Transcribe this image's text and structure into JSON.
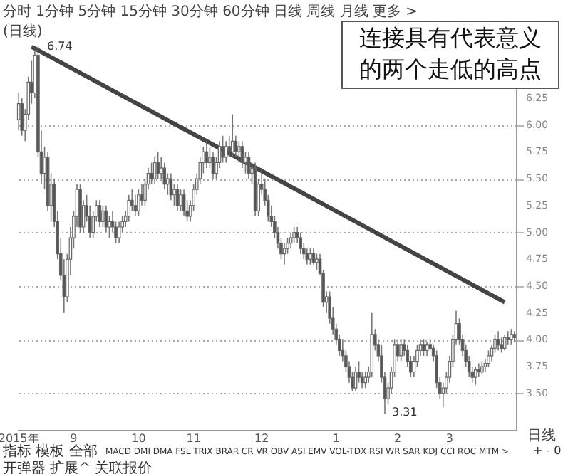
{
  "chart_data": {
    "type": "candlestick",
    "categories": [
      "2015年",
      null,
      null,
      null,
      null,
      null,
      null,
      null,
      null,
      null,
      null,
      null,
      null,
      null,
      null,
      null,
      null,
      "9",
      null,
      null,
      null,
      null,
      null,
      null,
      null,
      null,
      null,
      null,
      null,
      null,
      null,
      null,
      null,
      null,
      null,
      null,
      null,
      "10",
      null,
      null,
      null,
      null,
      null,
      null,
      null,
      null,
      null,
      null,
      null,
      null,
      null,
      null,
      null,
      null,
      "11",
      null,
      null,
      null,
      null,
      null,
      null,
      null,
      null,
      null,
      null,
      null,
      null,
      null,
      null,
      null,
      null,
      null,
      null,
      null,
      null,
      "12",
      null,
      null,
      null,
      null,
      null,
      null,
      null,
      null,
      null,
      null,
      null,
      null,
      null,
      null,
      null,
      null,
      null,
      null,
      null,
      null,
      null,
      null,
      "1",
      null,
      null,
      null,
      null,
      null,
      null,
      null,
      null,
      null,
      null,
      null,
      null,
      null,
      null,
      null,
      null,
      null,
      null,
      "2",
      null,
      null,
      null,
      null,
      null,
      null,
      null,
      null,
      null,
      null,
      null,
      null,
      null,
      null,
      null,
      "3",
      null,
      null,
      null,
      null,
      null,
      null,
      null,
      null,
      null,
      null,
      null,
      null,
      null,
      null,
      null,
      null,
      null,
      null,
      null,
      null
    ],
    "ohlc": [
      [
        6.05,
        6.3,
        5.95,
        6.2
      ],
      [
        6.2,
        6.25,
        5.9,
        5.95
      ],
      [
        5.95,
        6.15,
        5.85,
        6.1
      ],
      [
        6.1,
        6.45,
        6.05,
        6.4
      ],
      [
        6.4,
        6.6,
        6.2,
        6.3
      ],
      [
        6.3,
        6.7,
        6.25,
        6.65
      ],
      [
        6.65,
        6.74,
        5.7,
        5.75
      ],
      [
        5.75,
        5.95,
        5.45,
        5.55
      ],
      [
        5.55,
        5.8,
        5.4,
        5.7
      ],
      [
        5.7,
        5.75,
        5.2,
        5.25
      ],
      [
        5.25,
        5.55,
        5.1,
        5.45
      ],
      [
        5.45,
        5.5,
        5.05,
        5.1
      ],
      [
        5.1,
        5.2,
        4.75,
        4.8
      ],
      [
        4.8,
        4.95,
        4.55,
        4.6
      ],
      [
        4.6,
        4.75,
        4.25,
        4.4
      ],
      [
        4.4,
        4.8,
        4.35,
        4.75
      ],
      [
        4.75,
        5.05,
        4.6,
        4.95
      ],
      [
        4.95,
        5.2,
        4.85,
        5.15
      ],
      [
        5.15,
        5.45,
        5.05,
        5.4
      ],
      [
        5.4,
        5.45,
        5.0,
        5.05
      ],
      [
        5.05,
        5.3,
        5.0,
        5.25
      ],
      [
        5.25,
        5.35,
        5.1,
        5.15
      ],
      [
        5.15,
        5.25,
        4.95,
        5.0
      ],
      [
        5.0,
        5.2,
        4.95,
        5.15
      ],
      [
        5.15,
        5.3,
        5.1,
        5.25
      ],
      [
        5.25,
        5.3,
        5.05,
        5.1
      ],
      [
        5.1,
        5.25,
        5.05,
        5.2
      ],
      [
        5.2,
        5.25,
        5.0,
        5.05
      ],
      [
        5.05,
        5.15,
        4.95,
        5.1
      ],
      [
        5.1,
        5.2,
        5.0,
        5.05
      ],
      [
        5.05,
        5.1,
        4.9,
        4.95
      ],
      [
        4.95,
        5.1,
        4.9,
        5.05
      ],
      [
        5.05,
        5.15,
        5.0,
        5.1
      ],
      [
        5.1,
        5.2,
        5.05,
        5.15
      ],
      [
        5.15,
        5.35,
        5.1,
        5.3
      ],
      [
        5.3,
        5.4,
        5.2,
        5.25
      ],
      [
        5.25,
        5.35,
        5.15,
        5.2
      ],
      [
        5.2,
        5.4,
        5.15,
        5.35
      ],
      [
        5.35,
        5.45,
        5.25,
        5.3
      ],
      [
        5.3,
        5.5,
        5.25,
        5.45
      ],
      [
        5.45,
        5.6,
        5.4,
        5.55
      ],
      [
        5.55,
        5.65,
        5.45,
        5.5
      ],
      [
        5.5,
        5.7,
        5.45,
        5.65
      ],
      [
        5.65,
        5.75,
        5.5,
        5.55
      ],
      [
        5.55,
        5.7,
        5.5,
        5.6
      ],
      [
        5.6,
        5.65,
        5.4,
        5.45
      ],
      [
        5.45,
        5.55,
        5.35,
        5.5
      ],
      [
        5.5,
        5.55,
        5.3,
        5.35
      ],
      [
        5.35,
        5.45,
        5.25,
        5.4
      ],
      [
        5.4,
        5.45,
        5.2,
        5.25
      ],
      [
        5.25,
        5.4,
        5.2,
        5.35
      ],
      [
        5.35,
        5.4,
        5.15,
        5.2
      ],
      [
        5.2,
        5.3,
        5.1,
        5.15
      ],
      [
        5.15,
        5.3,
        5.1,
        5.25
      ],
      [
        5.25,
        5.45,
        5.2,
        5.4
      ],
      [
        5.4,
        5.55,
        5.35,
        5.5
      ],
      [
        5.5,
        5.7,
        5.45,
        5.65
      ],
      [
        5.65,
        5.8,
        5.55,
        5.75
      ],
      [
        5.75,
        5.85,
        5.6,
        5.65
      ],
      [
        5.65,
        5.8,
        5.6,
        5.7
      ],
      [
        5.7,
        5.75,
        5.5,
        5.55
      ],
      [
        5.55,
        5.7,
        5.5,
        5.65
      ],
      [
        5.65,
        5.85,
        5.6,
        5.8
      ],
      [
        5.8,
        5.9,
        5.65,
        5.7
      ],
      [
        5.7,
        5.85,
        5.65,
        5.8
      ],
      [
        5.8,
        5.9,
        5.7,
        5.75
      ],
      [
        5.75,
        6.1,
        5.7,
        5.85
      ],
      [
        5.85,
        5.9,
        5.7,
        5.75
      ],
      [
        5.75,
        5.85,
        5.65,
        5.8
      ],
      [
        5.8,
        5.85,
        5.6,
        5.65
      ],
      [
        5.65,
        5.75,
        5.55,
        5.7
      ],
      [
        5.7,
        5.75,
        5.5,
        5.55
      ],
      [
        5.55,
        5.65,
        5.45,
        5.6
      ],
      [
        5.6,
        5.65,
        5.15,
        5.2
      ],
      [
        5.2,
        5.5,
        5.15,
        5.45
      ],
      [
        5.45,
        5.6,
        5.35,
        5.4
      ],
      [
        5.4,
        5.5,
        5.25,
        5.3
      ],
      [
        5.3,
        5.35,
        5.1,
        5.15
      ],
      [
        5.15,
        5.25,
        5.05,
        5.1
      ],
      [
        5.1,
        5.15,
        4.95,
        5.0
      ],
      [
        5.0,
        5.05,
        4.85,
        4.9
      ],
      [
        4.9,
        4.95,
        4.75,
        4.8
      ],
      [
        4.8,
        4.9,
        4.7,
        4.85
      ],
      [
        4.85,
        4.95,
        4.8,
        4.9
      ],
      [
        4.9,
        5.0,
        4.85,
        4.95
      ],
      [
        4.95,
        5.05,
        4.9,
        5.0
      ],
      [
        5.0,
        5.05,
        4.9,
        4.95
      ],
      [
        4.95,
        5.0,
        4.8,
        4.85
      ],
      [
        4.85,
        4.9,
        4.75,
        4.8
      ],
      [
        4.8,
        4.85,
        4.7,
        4.75
      ],
      [
        4.75,
        4.85,
        4.7,
        4.8
      ],
      [
        4.8,
        4.85,
        4.7,
        4.72
      ],
      [
        4.72,
        4.8,
        4.65,
        4.75
      ],
      [
        4.75,
        4.8,
        4.6,
        4.62
      ],
      [
        4.62,
        4.65,
        4.3,
        4.35
      ],
      [
        4.35,
        4.45,
        4.25,
        4.4
      ],
      [
        4.4,
        4.45,
        4.15,
        4.2
      ],
      [
        4.2,
        4.3,
        4.05,
        4.1
      ],
      [
        4.1,
        4.15,
        3.95,
        4.0
      ],
      [
        4.0,
        4.05,
        3.85,
        3.9
      ],
      [
        3.9,
        4.0,
        3.8,
        3.85
      ],
      [
        3.85,
        3.9,
        3.7,
        3.75
      ],
      [
        3.75,
        3.8,
        3.6,
        3.65
      ],
      [
        3.65,
        3.7,
        3.52,
        3.55
      ],
      [
        3.55,
        3.75,
        3.52,
        3.7
      ],
      [
        3.7,
        3.8,
        3.6,
        3.65
      ],
      [
        3.65,
        3.7,
        3.55,
        3.6
      ],
      [
        3.6,
        3.7,
        3.55,
        3.65
      ],
      [
        3.65,
        3.75,
        3.6,
        3.7
      ],
      [
        3.7,
        4.25,
        3.65,
        4.05
      ],
      [
        4.05,
        4.1,
        3.9,
        3.95
      ],
      [
        3.95,
        4.0,
        3.8,
        3.85
      ],
      [
        3.85,
        3.95,
        3.6,
        3.65
      ],
      [
        3.65,
        3.7,
        3.31,
        3.45
      ],
      [
        3.45,
        3.6,
        3.4,
        3.55
      ],
      [
        3.55,
        3.75,
        3.5,
        3.7
      ],
      [
        3.7,
        4.0,
        3.65,
        3.95
      ],
      [
        3.95,
        4.0,
        3.8,
        3.85
      ],
      [
        3.85,
        4.0,
        3.8,
        3.95
      ],
      [
        3.95,
        4.0,
        3.85,
        3.9
      ],
      [
        3.9,
        3.95,
        3.75,
        3.8
      ],
      [
        3.8,
        3.85,
        3.65,
        3.7
      ],
      [
        3.7,
        3.85,
        3.65,
        3.8
      ],
      [
        3.8,
        3.95,
        3.75,
        3.9
      ],
      [
        3.9,
        4.0,
        3.85,
        3.95
      ],
      [
        3.95,
        4.0,
        3.85,
        3.9
      ],
      [
        3.9,
        3.98,
        3.85,
        3.95
      ],
      [
        3.95,
        4.0,
        3.9,
        3.92
      ],
      [
        3.92,
        3.95,
        3.8,
        3.85
      ],
      [
        3.85,
        3.9,
        3.55,
        3.6
      ],
      [
        3.6,
        3.65,
        3.45,
        3.5
      ],
      [
        3.5,
        3.6,
        3.37,
        3.55
      ],
      [
        3.55,
        3.7,
        3.5,
        3.65
      ],
      [
        3.65,
        3.85,
        3.6,
        3.8
      ],
      [
        3.8,
        4.05,
        3.75,
        4.0
      ],
      [
        4.0,
        4.27,
        3.95,
        4.15
      ],
      [
        4.15,
        4.2,
        3.95,
        4.0
      ],
      [
        4.0,
        4.05,
        3.85,
        3.9
      ],
      [
        3.9,
        3.95,
        3.75,
        3.8
      ],
      [
        3.8,
        3.85,
        3.65,
        3.7
      ],
      [
        3.7,
        3.75,
        3.6,
        3.65
      ],
      [
        3.65,
        3.75,
        3.58,
        3.72
      ],
      [
        3.72,
        3.78,
        3.65,
        3.7
      ],
      [
        3.7,
        3.8,
        3.68,
        3.75
      ],
      [
        3.75,
        3.82,
        3.7,
        3.78
      ],
      [
        3.78,
        3.9,
        3.75,
        3.85
      ],
      [
        3.85,
        3.95,
        3.8,
        3.92
      ],
      [
        3.92,
        4.05,
        3.88,
        4.0
      ],
      [
        4.0,
        4.08,
        3.9,
        3.95
      ],
      [
        3.95,
        4.02,
        3.88,
        3.92
      ],
      [
        3.92,
        4.05,
        3.9,
        4.02
      ],
      [
        4.02,
        4.08,
        3.95,
        4.0
      ],
      [
        4.0,
        4.1,
        3.95,
        4.05
      ],
      [
        4.05,
        4.08,
        3.98,
        4.02
      ]
    ],
    "series": [
      {
        "type": "line",
        "color": "#444444",
        "values": [
          null,
          null,
          null,
          null,
          6.73,
          null,
          null,
          null,
          null,
          null,
          null,
          null,
          null,
          null,
          null,
          null,
          null,
          null,
          null,
          null,
          null,
          null,
          null,
          null,
          null,
          null,
          null,
          null,
          null,
          null,
          null,
          null,
          null,
          null,
          null,
          null,
          null,
          null,
          null,
          null,
          null,
          null,
          null,
          null,
          null,
          null,
          null,
          null,
          null,
          null,
          null,
          null,
          null,
          null,
          null,
          null,
          null,
          null,
          null,
          null,
          null,
          null,
          null,
          null,
          null,
          null,
          null,
          null,
          null,
          null,
          null,
          null,
          null,
          null,
          null,
          null,
          null,
          null,
          null,
          null,
          null,
          null,
          null,
          null,
          null,
          null,
          null,
          null,
          null,
          null,
          null,
          null,
          null,
          null,
          null,
          null,
          null,
          null,
          null,
          null,
          null,
          null,
          null,
          null,
          null,
          null,
          null,
          null,
          null,
          null,
          null,
          null,
          null,
          null,
          null,
          null,
          null,
          null,
          null,
          null,
          null,
          null,
          null,
          null,
          null,
          null,
          null,
          null,
          null,
          null,
          null,
          null,
          null,
          null,
          null,
          null,
          null,
          null,
          null,
          null,
          null,
          null,
          null,
          null,
          null,
          null,
          null,
          null,
          null,
          null,
          4.35,
          null,
          null,
          null
        ]
      }
    ],
    "ylim": [
      3.16,
      6.9
    ],
    "yticks": [
      {
        "value": 3.5,
        "label": "3.50"
      },
      {
        "value": 3.75,
        "label": "3.75"
      },
      {
        "value": 4.0,
        "label": "4.00"
      },
      {
        "value": 4.25,
        "label": "4.25"
      },
      {
        "value": 4.5,
        "label": "4.50"
      },
      {
        "value": 4.75,
        "label": "4.75"
      },
      {
        "value": 5.0,
        "label": "5.00"
      },
      {
        "value": 5.25,
        "label": "5.25"
      },
      {
        "value": 5.5,
        "label": "5.50"
      },
      {
        "value": 5.75,
        "label": "5.75"
      },
      {
        "value": 6.0,
        "label": "6.00"
      },
      {
        "value": 6.25,
        "label": "6.25"
      }
    ],
    "grid": "y",
    "annotations": [
      "分时 1分钟 5分钟 15分钟 30分钟 60分钟 日线 周线 月线 更多 >",
      "(日线)",
      "6.74",
      "3.31",
      "连接具有代表意义的两个走低的高点",
      "日线",
      "指标 模板 全部",
      "MACD DMI DMA FSL TRIX BRAR CR VR OBV ASI EMV VOL-TDX RSI WR SAR KDJ CCI ROC MTM >",
      "+ - 0",
      "开弹器 扩展^ 关联报价"
    ]
  }
}
